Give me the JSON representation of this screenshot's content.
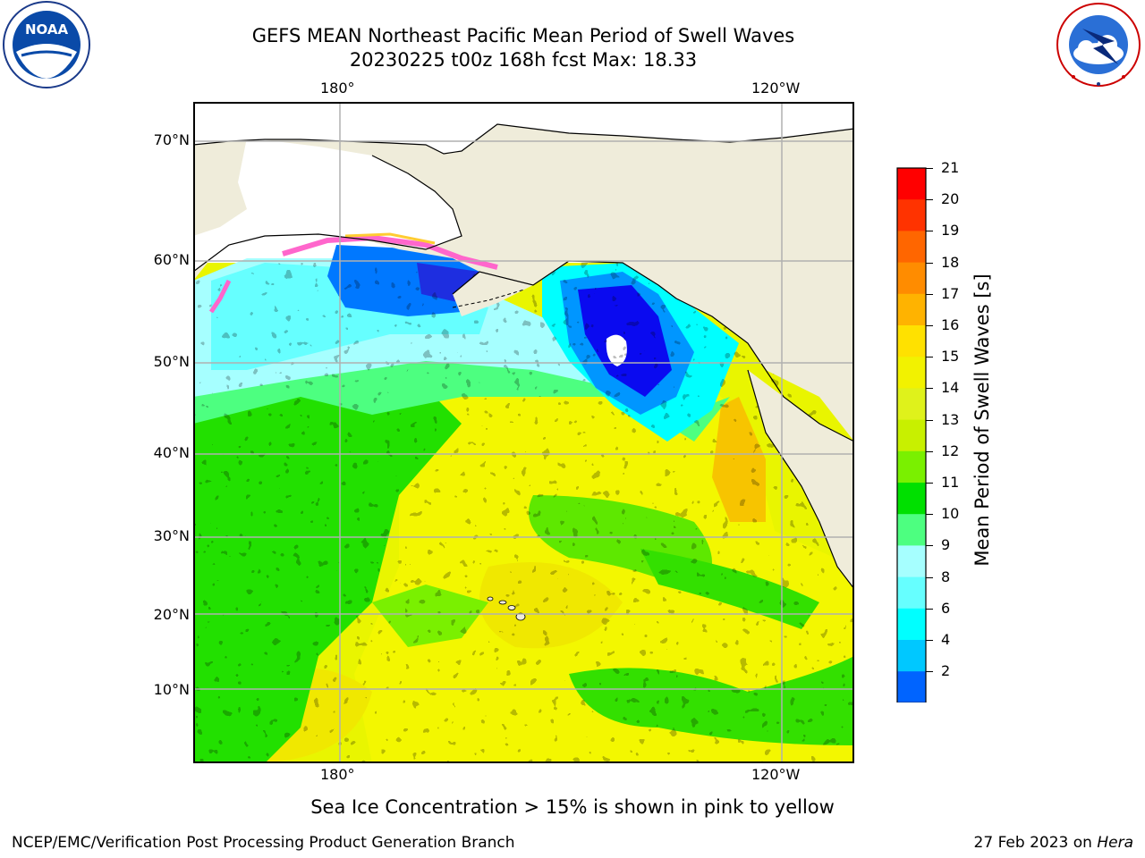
{
  "header": {
    "title_line1": "GEFS MEAN Northeast Pacific Mean Period of Swell Waves",
    "title_line2": "20230225 t00z 168h fcst   Max: 18.33"
  },
  "logos": {
    "left": {
      "name": "noaa-logo",
      "text": "NOAA"
    },
    "right": {
      "name": "national-weather-service-logo"
    }
  },
  "map": {
    "lon_ticks_top": [
      "180°",
      "120°W"
    ],
    "lon_ticks_bottom": [
      "180°",
      "120°W"
    ],
    "lat_ticks": [
      "70°N",
      "60°N",
      "50°N",
      "40°N",
      "30°N",
      "20°N",
      "10°N"
    ],
    "colors": {
      "land": "#efecda",
      "grid": "#b0b0b0",
      "coast": "#000000",
      "ice_pink": "#ff66cc",
      "ice_yellow": "#ffcc33"
    }
  },
  "colorbar": {
    "label": "Mean Period of Swell Waves [s]",
    "ticks": [
      "21",
      "20",
      "19",
      "18",
      "17",
      "16",
      "15",
      "14",
      "13",
      "12",
      "11",
      "10",
      "9",
      "8",
      "6",
      "4",
      "2"
    ],
    "bins": [
      {
        "color": "#ff0000"
      },
      {
        "color": "#ff3300"
      },
      {
        "color": "#ff6600"
      },
      {
        "color": "#ff8c00"
      },
      {
        "color": "#ffb300"
      },
      {
        "color": "#ffe100"
      },
      {
        "color": "#f2f200"
      },
      {
        "color": "#dff21b"
      },
      {
        "color": "#c8f000"
      },
      {
        "color": "#7af000"
      },
      {
        "color": "#00e000"
      },
      {
        "color": "#4dff80"
      },
      {
        "color": "#a6ffff"
      },
      {
        "color": "#66ffff"
      },
      {
        "color": "#00ffff"
      },
      {
        "color": "#00c8ff"
      },
      {
        "color": "#0064ff"
      }
    ],
    "extend_color": "#0000ff"
  },
  "footer": {
    "note": "Sea Ice Concentration > 15% is shown in pink to yellow",
    "left": "NCEP/EMC/Verification Post Processing Product Generation Branch",
    "right_prefix": "27 Feb 2023 on ",
    "right_italic": "Hera"
  }
}
